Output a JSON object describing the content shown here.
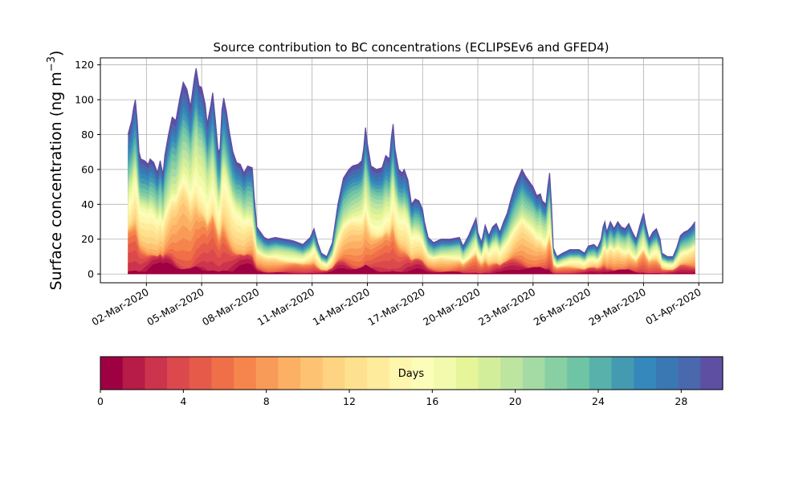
{
  "chart_data": {
    "type": "area",
    "title": "Source contribution to BC concentrations (ECLIPSEv6 and GFED4)",
    "ylabel_main": "Surface concentration (ng m",
    "ylabel_sup": "−3",
    "ylabel_close": ")",
    "ylim": [
      -5,
      124
    ],
    "yticks": [
      0,
      20,
      40,
      60,
      80,
      100,
      120
    ],
    "xlim_days": [
      -2.5,
      31.3
    ],
    "xticks": [
      {
        "day": 0,
        "label": "02-Mar-2020"
      },
      {
        "day": 3,
        "label": "05-Mar-2020"
      },
      {
        "day": 6,
        "label": "08-Mar-2020"
      },
      {
        "day": 9,
        "label": "11-Mar-2020"
      },
      {
        "day": 12,
        "label": "14-Mar-2020"
      },
      {
        "day": 15,
        "label": "17-Mar-2020"
      },
      {
        "day": 18,
        "label": "20-Mar-2020"
      },
      {
        "day": 21,
        "label": "23-Mar-2020"
      },
      {
        "day": 24,
        "label": "26-Mar-2020"
      },
      {
        "day": 27,
        "label": "29-Mar-2020"
      },
      {
        "day": 30,
        "label": "01-Apr-2020"
      }
    ],
    "grid": true,
    "total": [
      [
        -1.0,
        80
      ],
      [
        -0.9,
        84
      ],
      [
        -0.8,
        88
      ],
      [
        -0.7,
        95
      ],
      [
        -0.6,
        100
      ],
      [
        -0.5,
        88
      ],
      [
        -0.4,
        70
      ],
      [
        -0.3,
        66
      ],
      [
        -0.1,
        65
      ],
      [
        0.1,
        63
      ],
      [
        0.2,
        66
      ],
      [
        0.4,
        64
      ],
      [
        0.6,
        58
      ],
      [
        0.75,
        65
      ],
      [
        0.9,
        57
      ],
      [
        1.0,
        68
      ],
      [
        1.2,
        80
      ],
      [
        1.4,
        90
      ],
      [
        1.6,
        88
      ],
      [
        1.8,
        100
      ],
      [
        2.0,
        110
      ],
      [
        2.2,
        106
      ],
      [
        2.4,
        96
      ],
      [
        2.6,
        112
      ],
      [
        2.7,
        118
      ],
      [
        2.85,
        108
      ],
      [
        3.0,
        107
      ],
      [
        3.2,
        97
      ],
      [
        3.3,
        86
      ],
      [
        3.5,
        97
      ],
      [
        3.6,
        104
      ],
      [
        3.75,
        88
      ],
      [
        3.9,
        70
      ],
      [
        4.0,
        72
      ],
      [
        4.1,
        94
      ],
      [
        4.2,
        101
      ],
      [
        4.35,
        93
      ],
      [
        4.5,
        82
      ],
      [
        4.7,
        70
      ],
      [
        4.9,
        64
      ],
      [
        5.1,
        63
      ],
      [
        5.3,
        58
      ],
      [
        5.5,
        62
      ],
      [
        5.75,
        61
      ],
      [
        5.85,
        45
      ],
      [
        6.0,
        27
      ],
      [
        6.2,
        24
      ],
      [
        6.4,
        21
      ],
      [
        6.6,
        20
      ],
      [
        7.0,
        21
      ],
      [
        7.5,
        20
      ],
      [
        8.0,
        19
      ],
      [
        8.5,
        17
      ],
      [
        8.9,
        21
      ],
      [
        9.1,
        26
      ],
      [
        9.3,
        18
      ],
      [
        9.5,
        12
      ],
      [
        9.8,
        10
      ],
      [
        10.1,
        18
      ],
      [
        10.4,
        40
      ],
      [
        10.7,
        55
      ],
      [
        11.0,
        60
      ],
      [
        11.2,
        62
      ],
      [
        11.5,
        63
      ],
      [
        11.7,
        65
      ],
      [
        11.8,
        72
      ],
      [
        11.9,
        84
      ],
      [
        12.0,
        75
      ],
      [
        12.2,
        62
      ],
      [
        12.5,
        60
      ],
      [
        12.8,
        61
      ],
      [
        13.0,
        68
      ],
      [
        13.2,
        66
      ],
      [
        13.3,
        78
      ],
      [
        13.4,
        86
      ],
      [
        13.5,
        72
      ],
      [
        13.7,
        60
      ],
      [
        13.9,
        58
      ],
      [
        14.0,
        60
      ],
      [
        14.2,
        54
      ],
      [
        14.4,
        40
      ],
      [
        14.6,
        43
      ],
      [
        14.8,
        42
      ],
      [
        15.0,
        37
      ],
      [
        15.1,
        30
      ],
      [
        15.3,
        21
      ],
      [
        15.6,
        18
      ],
      [
        16.0,
        20
      ],
      [
        16.5,
        20
      ],
      [
        17.0,
        21
      ],
      [
        17.2,
        16
      ],
      [
        17.5,
        22
      ],
      [
        17.7,
        27
      ],
      [
        17.9,
        32
      ],
      [
        18.0,
        24
      ],
      [
        18.2,
        18
      ],
      [
        18.4,
        28
      ],
      [
        18.6,
        22
      ],
      [
        18.8,
        27
      ],
      [
        19.0,
        29
      ],
      [
        19.2,
        24
      ],
      [
        19.4,
        30
      ],
      [
        19.6,
        35
      ],
      [
        19.8,
        43
      ],
      [
        20.0,
        50
      ],
      [
        20.2,
        55
      ],
      [
        20.4,
        60
      ],
      [
        20.6,
        56
      ],
      [
        20.8,
        53
      ],
      [
        21.0,
        50
      ],
      [
        21.2,
        45
      ],
      [
        21.4,
        46
      ],
      [
        21.5,
        42
      ],
      [
        21.7,
        40
      ],
      [
        21.8,
        50
      ],
      [
        21.9,
        58
      ],
      [
        22.0,
        40
      ],
      [
        22.1,
        15
      ],
      [
        22.3,
        10
      ],
      [
        22.6,
        12
      ],
      [
        23.0,
        14
      ],
      [
        23.5,
        14
      ],
      [
        23.8,
        12
      ],
      [
        24.0,
        16
      ],
      [
        24.3,
        17
      ],
      [
        24.5,
        15
      ],
      [
        24.7,
        20
      ],
      [
        24.8,
        27
      ],
      [
        24.9,
        30
      ],
      [
        25.0,
        24
      ],
      [
        25.2,
        30
      ],
      [
        25.4,
        26
      ],
      [
        25.6,
        30
      ],
      [
        25.8,
        27
      ],
      [
        26.0,
        26
      ],
      [
        26.2,
        29
      ],
      [
        26.4,
        24
      ],
      [
        26.6,
        20
      ],
      [
        26.8,
        28
      ],
      [
        27.0,
        35
      ],
      [
        27.1,
        29
      ],
      [
        27.3,
        20
      ],
      [
        27.5,
        24
      ],
      [
        27.7,
        26
      ],
      [
        27.9,
        20
      ],
      [
        28.0,
        12
      ],
      [
        28.3,
        10
      ],
      [
        28.6,
        10
      ],
      [
        28.8,
        15
      ],
      [
        29.0,
        22
      ],
      [
        29.2,
        24
      ],
      [
        29.4,
        25
      ],
      [
        29.6,
        27
      ],
      [
        29.8,
        30
      ]
    ],
    "colorbar": {
      "label": "Days",
      "min": 0,
      "max": 30,
      "ticks": [
        0,
        4,
        8,
        12,
        16,
        20,
        24,
        28
      ],
      "colors": [
        "#9e0142",
        "#b71c48",
        "#cc334d",
        "#dc494c",
        "#e65a4a",
        "#ef6f48",
        "#f5844d",
        "#f99b58",
        "#fcb064",
        "#fdc272",
        "#fed381",
        "#fee18f",
        "#feeb9b",
        "#fff6ad",
        "#fbfdb8",
        "#f2faae",
        "#e6f598",
        "#d3ee9b",
        "#bde5a0",
        "#a4daa4",
        "#88cfa4",
        "#6fc4a5",
        "#58b1ab",
        "#449ab1",
        "#3588bc",
        "#3a78b4",
        "#4a68ae",
        "#5e4fa2"
      ]
    }
  }
}
